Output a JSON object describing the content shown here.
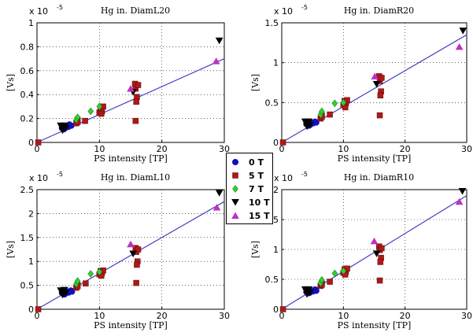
{
  "chart_data": [
    {
      "type": "scatter",
      "title": "Hg in. DiamL20",
      "xlabel": "PS intensity [TP]",
      "ylabel": "[Vs]",
      "xlim": [
        0,
        30
      ],
      "ylim": [
        0,
        1e-05
      ],
      "exponent_label": "x 10",
      "exponent": "-5",
      "xticks": [
        0,
        10,
        20,
        30
      ],
      "xtick_labels": [
        "0",
        "10",
        "20",
        "30"
      ],
      "yticks": [
        0,
        2e-06,
        4e-06,
        6e-06,
        8e-06,
        1e-05
      ],
      "ytick_labels": [
        "0",
        "0.2",
        "0.4",
        "0.6",
        "0.8",
        "1"
      ],
      "grid": true,
      "fit_line": {
        "x": [
          0,
          30
        ],
        "y": [
          0,
          7e-06
        ]
      },
      "series": [
        {
          "name": "0 T",
          "marker": "circle",
          "color": "#1010c0",
          "points": [
            [
              4.0,
              1.2e-06
            ],
            [
              4.2,
              1.4e-06
            ],
            [
              4.5,
              1.2e-06
            ],
            [
              4.7,
              1.3e-06
            ],
            [
              5.0,
              1.3e-06
            ],
            [
              5.2,
              1.5e-06
            ],
            [
              5.5,
              1.4e-06
            ],
            [
              4.3,
              1.1e-06
            ]
          ]
        },
        {
          "name": "5 T",
          "marker": "square",
          "color": "#b01818",
          "points": [
            [
              0.2,
              0.0
            ],
            [
              6.3,
              1.6e-06
            ],
            [
              6.5,
              1.9e-06
            ],
            [
              6.5,
              1.7e-06
            ],
            [
              7.7,
              1.8e-06
            ],
            [
              10.0,
              2.5e-06
            ],
            [
              10.2,
              2.9e-06
            ],
            [
              10.4,
              2.6e-06
            ],
            [
              10.6,
              3e-06
            ],
            [
              10.3,
              2.4e-06
            ],
            [
              15.7,
              4.9e-06
            ],
            [
              15.8,
              4.5e-06
            ],
            [
              16.0,
              3.8e-06
            ],
            [
              15.9,
              3.4e-06
            ],
            [
              15.8,
              1.8e-06
            ],
            [
              16.2,
              4.8e-06
            ]
          ]
        },
        {
          "name": "7 T",
          "marker": "diamond",
          "color": "#30d030",
          "points": [
            [
              6.3,
              1.9e-06
            ],
            [
              6.5,
              2.1e-06
            ],
            [
              8.6,
              2.6e-06
            ],
            [
              10.0,
              3e-06
            ]
          ]
        },
        {
          "name": "10 T",
          "marker": "triangle-down",
          "color": "#000000",
          "points": [
            [
              3.8,
              1.4e-06
            ],
            [
              4.0,
              1.2e-06
            ],
            [
              4.2,
              1.3e-06
            ],
            [
              4.4,
              1.4e-06
            ],
            [
              4.6,
              1.2e-06
            ],
            [
              4.1,
              1e-06
            ],
            [
              15.4,
              4.2e-06
            ],
            [
              29.2,
              8.5e-06
            ]
          ]
        },
        {
          "name": "15 T",
          "marker": "triangle-up",
          "color": "#c030c0",
          "points": [
            [
              15.0,
              4.5e-06
            ],
            [
              28.7,
              6.8e-06
            ]
          ]
        }
      ]
    },
    {
      "type": "scatter",
      "title": "Hg in. DiamR20",
      "xlabel": "PS intensity [TP]",
      "ylabel": "[Vs]",
      "xlim": [
        0,
        30
      ],
      "ylim": [
        0,
        1.5e-05
      ],
      "exponent_label": "x 10",
      "exponent": "-5",
      "xticks": [
        0,
        10,
        20,
        30
      ],
      "xtick_labels": [
        "0",
        "10",
        "20",
        "30"
      ],
      "yticks": [
        0,
        5e-06,
        1e-05,
        1.5e-05
      ],
      "ytick_labels": [
        "0",
        "0.5",
        "1",
        "1.5"
      ],
      "grid": true,
      "fit_line": {
        "x": [
          0,
          30
        ],
        "y": [
          0,
          1.35e-05
        ]
      },
      "series": [
        {
          "name": "0 T",
          "marker": "circle",
          "color": "#1010c0",
          "points": [
            [
              4.0,
              2.3e-06
            ],
            [
              4.3,
              2.6e-06
            ],
            [
              4.6,
              2.2e-06
            ],
            [
              4.8,
              2.5e-06
            ],
            [
              5.1,
              2.4e-06
            ],
            [
              5.4,
              2.6e-06
            ],
            [
              5.6,
              2.5e-06
            ],
            [
              4.4,
              2.1e-06
            ]
          ]
        },
        {
          "name": "5 T",
          "marker": "square",
          "color": "#b01818",
          "points": [
            [
              0.2,
              0.0
            ],
            [
              6.3,
              3e-06
            ],
            [
              6.5,
              3.4e-06
            ],
            [
              6.5,
              3.2e-06
            ],
            [
              7.8,
              3.5e-06
            ],
            [
              10.0,
              4.7e-06
            ],
            [
              10.2,
              5.2e-06
            ],
            [
              10.4,
              4.9e-06
            ],
            [
              10.6,
              5.3e-06
            ],
            [
              10.3,
              4.4e-06
            ],
            [
              15.8,
              8.3e-06
            ],
            [
              15.9,
              7.7e-06
            ],
            [
              16.1,
              6.4e-06
            ],
            [
              16.0,
              5.9e-06
            ],
            [
              15.9,
              3.4e-06
            ],
            [
              16.2,
              8.1e-06
            ]
          ]
        },
        {
          "name": "7 T",
          "marker": "diamond",
          "color": "#30d030",
          "points": [
            [
              6.3,
              3.5e-06
            ],
            [
              6.5,
              3.9e-06
            ],
            [
              8.6,
              4.9e-06
            ],
            [
              10.0,
              5e-06
            ]
          ]
        },
        {
          "name": "10 T",
          "marker": "triangle-down",
          "color": "#000000",
          "points": [
            [
              3.8,
              2.6e-06
            ],
            [
              4.0,
              2.3e-06
            ],
            [
              4.2,
              2.5e-06
            ],
            [
              4.4,
              2.6e-06
            ],
            [
              4.6,
              2.2e-06
            ],
            [
              4.1,
              2e-06
            ],
            [
              15.4,
              7.3e-06
            ],
            [
              29.4,
              1.4e-05
            ]
          ]
        },
        {
          "name": "15 T",
          "marker": "triangle-up",
          "color": "#c030c0",
          "points": [
            [
              15.1,
              8.3e-06
            ],
            [
              28.8,
              1.2e-05
            ]
          ]
        }
      ]
    },
    {
      "type": "scatter",
      "title": "Hg in. DiamL10",
      "xlabel": "PS intensity [TP]",
      "ylabel": "[Vs]",
      "xlim": [
        0,
        30
      ],
      "ylim": [
        0,
        2.5e-05
      ],
      "exponent_label": "x 10",
      "exponent": "-5",
      "xticks": [
        0,
        10,
        20,
        30
      ],
      "xtick_labels": [
        "0",
        "10",
        "20",
        "30"
      ],
      "yticks": [
        0,
        5e-06,
        1e-05,
        1.5e-05,
        2e-05,
        2.5e-05
      ],
      "ytick_labels": [
        "0",
        "0.5",
        "1",
        "1.5",
        "2",
        "2.5"
      ],
      "grid": true,
      "fit_line": {
        "x": [
          0,
          30
        ],
        "y": [
          0,
          2.25e-05
        ]
      },
      "series": [
        {
          "name": "0 T",
          "marker": "circle",
          "color": "#1010c0",
          "points": [
            [
              4.0,
              3.4e-06
            ],
            [
              4.3,
              3.8e-06
            ],
            [
              4.6,
              3.3e-06
            ],
            [
              4.8,
              3.7e-06
            ],
            [
              5.1,
              3.5e-06
            ],
            [
              5.4,
              3.9e-06
            ],
            [
              5.6,
              3.7e-06
            ],
            [
              4.4,
              3.1e-06
            ]
          ]
        },
        {
          "name": "5 T",
          "marker": "square",
          "color": "#b01818",
          "points": [
            [
              0.2,
              0.0
            ],
            [
              6.3,
              4.5e-06
            ],
            [
              6.5,
              5.1e-06
            ],
            [
              6.5,
              4.8e-06
            ],
            [
              7.8,
              5.4e-06
            ],
            [
              10.0,
              7.3e-06
            ],
            [
              10.2,
              8e-06
            ],
            [
              10.4,
              7.6e-06
            ],
            [
              10.6,
              8.1e-06
            ],
            [
              10.3,
              7e-06
            ],
            [
              15.8,
              1.28e-05
            ],
            [
              15.9,
              1.2e-05
            ],
            [
              16.1,
              1e-05
            ],
            [
              16.0,
              9.3e-06
            ],
            [
              15.9,
              5.5e-06
            ],
            [
              16.2,
              1.25e-05
            ]
          ]
        },
        {
          "name": "7 T",
          "marker": "diamond",
          "color": "#30d030",
          "points": [
            [
              6.3,
              5.3e-06
            ],
            [
              6.5,
              5.9e-06
            ],
            [
              8.6,
              7.4e-06
            ],
            [
              10.0,
              7.8e-06
            ]
          ]
        },
        {
          "name": "10 T",
          "marker": "triangle-down",
          "color": "#000000",
          "points": [
            [
              3.8,
              3.9e-06
            ],
            [
              4.0,
              3.5e-06
            ],
            [
              4.2,
              3.7e-06
            ],
            [
              4.4,
              4e-06
            ],
            [
              4.6,
              3.4e-06
            ],
            [
              4.1,
              3e-06
            ],
            [
              15.4,
              1.16e-05
            ],
            [
              29.2,
              2.43e-05
            ]
          ]
        },
        {
          "name": "15 T",
          "marker": "triangle-up",
          "color": "#c030c0",
          "points": [
            [
              15.0,
              1.36e-05
            ],
            [
              28.8,
              2.13e-05
            ]
          ]
        }
      ]
    },
    {
      "type": "scatter",
      "title": "Hg in. DiamR10",
      "xlabel": "PS intensity [TP]",
      "ylabel": "[Vs]",
      "xlim": [
        0,
        30
      ],
      "ylim": [
        0,
        2e-05
      ],
      "exponent_label": "x 10",
      "exponent": "-5",
      "xticks": [
        0,
        10,
        20,
        30
      ],
      "xtick_labels": [
        "0",
        "10",
        "20",
        "30"
      ],
      "yticks": [
        0,
        5e-06,
        1e-05,
        1.5e-05,
        2e-05
      ],
      "ytick_labels": [
        "0",
        "0.5",
        "1",
        "1.5",
        "2"
      ],
      "grid": true,
      "fit_line": {
        "x": [
          0,
          30
        ],
        "y": [
          0,
          1.9e-05
        ]
      },
      "series": [
        {
          "name": "0 T",
          "marker": "circle",
          "color": "#1010c0",
          "points": [
            [
              4.0,
              2.9e-06
            ],
            [
              4.3,
              3.2e-06
            ],
            [
              4.6,
              2.8e-06
            ],
            [
              4.8,
              3.1e-06
            ],
            [
              5.1,
              3e-06
            ],
            [
              5.4,
              3.3e-06
            ],
            [
              5.6,
              3.1e-06
            ],
            [
              4.4,
              2.7e-06
            ]
          ]
        },
        {
          "name": "5 T",
          "marker": "square",
          "color": "#b01818",
          "points": [
            [
              0.2,
              0.0
            ],
            [
              6.3,
              3.9e-06
            ],
            [
              6.5,
              4.3e-06
            ],
            [
              6.5,
              4.1e-06
            ],
            [
              7.8,
              4.6e-06
            ],
            [
              10.0,
              6.1e-06
            ],
            [
              10.2,
              6.7e-06
            ],
            [
              10.4,
              6.3e-06
            ],
            [
              10.6,
              6.8e-06
            ],
            [
              10.3,
              5.8e-06
            ],
            [
              15.8,
              1.05e-05
            ],
            [
              15.9,
              9.9e-06
            ],
            [
              16.1,
              8.6e-06
            ],
            [
              16.0,
              7.9e-06
            ],
            [
              15.9,
              4.8e-06
            ],
            [
              16.2,
              1.02e-05
            ]
          ]
        },
        {
          "name": "7 T",
          "marker": "diamond",
          "color": "#30d030",
          "points": [
            [
              6.3,
              4.4e-06
            ],
            [
              6.5,
              4.9e-06
            ],
            [
              8.6,
              6e-06
            ],
            [
              10.0,
              6.4e-06
            ]
          ]
        },
        {
          "name": "10 T",
          "marker": "triangle-down",
          "color": "#000000",
          "points": [
            [
              3.8,
              3.3e-06
            ],
            [
              4.0,
              2.9e-06
            ],
            [
              4.2,
              3.1e-06
            ],
            [
              4.4,
              3.3e-06
            ],
            [
              4.6,
              2.8e-06
            ],
            [
              4.1,
              2.5e-06
            ],
            [
              15.4,
              9.3e-06
            ],
            [
              29.3,
              1.98e-05
            ]
          ]
        },
        {
          "name": "15 T",
          "marker": "triangle-up",
          "color": "#c030c0",
          "points": [
            [
              15.0,
              1.14e-05
            ],
            [
              28.8,
              1.8e-05
            ]
          ]
        }
      ]
    }
  ],
  "legend": [
    {
      "label": "0 T",
      "marker": "circle",
      "color": "#1010c0"
    },
    {
      "label": "5 T",
      "marker": "square",
      "color": "#b01818"
    },
    {
      "label": "7 T",
      "marker": "diamond",
      "color": "#30d030"
    },
    {
      "label": "10 T",
      "marker": "triangle-down",
      "color": "#000000"
    },
    {
      "label": "15 T",
      "marker": "triangle-up",
      "color": "#c030c0"
    }
  ],
  "line_color": "#4040c0"
}
